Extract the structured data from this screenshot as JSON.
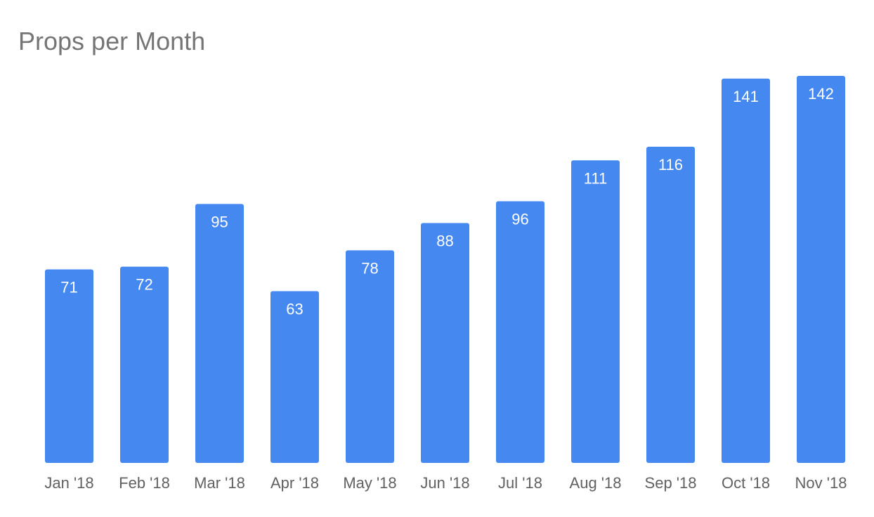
{
  "chart_data": {
    "type": "bar",
    "title": "Props per Month",
    "categories": [
      "Jan '18",
      "Feb '18",
      "Mar '18",
      "Apr '18",
      "May '18",
      "Jun '18",
      "Jul '18",
      "Aug '18",
      "Sep '18",
      "Oct '18",
      "Nov '18"
    ],
    "values": [
      71,
      72,
      95,
      63,
      78,
      88,
      96,
      111,
      116,
      141,
      142
    ],
    "xlabel": "",
    "ylabel": "",
    "ylim": [
      0,
      142
    ],
    "grid": false,
    "legend": "none",
    "data_labels": true,
    "bar_color": "#4589f0"
  }
}
